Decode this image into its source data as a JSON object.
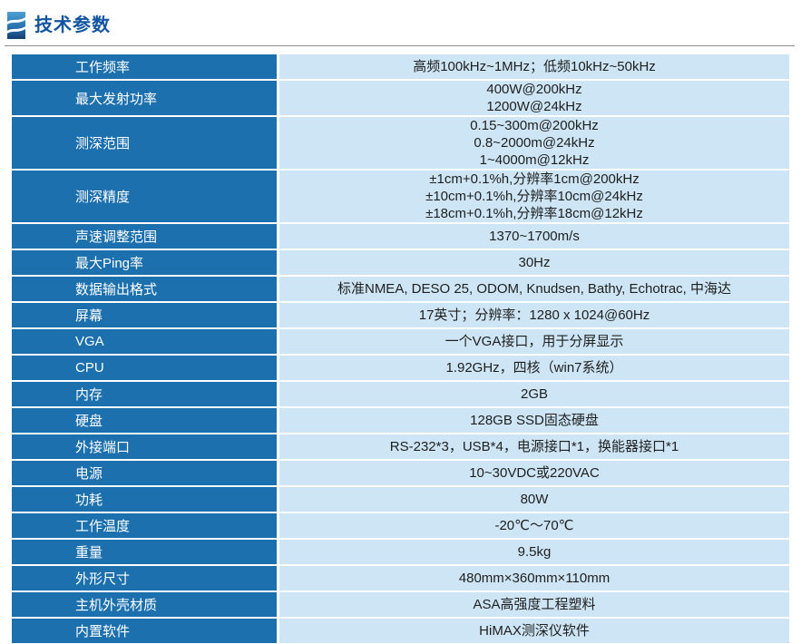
{
  "header": {
    "title": "技术参数",
    "icon": "waves-icon"
  },
  "colors": {
    "label_bg": "#1d70ae",
    "value_bg": "#cde5f4",
    "label_text": "#ffffff",
    "value_text": "#1f1f1f",
    "separator": "#ffffff",
    "title": "#1254a0",
    "rule": "#8f8f8f"
  },
  "table": {
    "rows": [
      {
        "label": "工作频率",
        "values": [
          "高频100kHz~1MHz；低频10kHz~50kHz"
        ]
      },
      {
        "label": "最大发射功率",
        "values": [
          "400W@200kHz",
          "1200W@24kHz"
        ]
      },
      {
        "label": "测深范围",
        "values": [
          "0.15~300m@200kHz",
          "0.8~2000m@24kHz",
          "1~4000m@12kHz"
        ]
      },
      {
        "label": "测深精度",
        "values": [
          "±1cm+0.1%h,分辨率1cm@200kHz",
          "±10cm+0.1%h,分辨率10cm@24kHz",
          "±18cm+0.1%h,分辨率18cm@12kHz"
        ]
      },
      {
        "label": "声速调整范围",
        "values": [
          "1370~1700m/s"
        ]
      },
      {
        "label": "最大Ping率",
        "values": [
          "30Hz"
        ]
      },
      {
        "label": "数据输出格式",
        "values": [
          "标准NMEA, DESO 25, ODOM, Knudsen, Bathy, Echotrac, 中海达"
        ]
      },
      {
        "label": "屏幕",
        "values": [
          "17英寸；分辨率：1280 x 1024@60Hz"
        ]
      },
      {
        "label": "VGA",
        "values": [
          "一个VGA接口，用于分屏显示"
        ]
      },
      {
        "label": "CPU",
        "values": [
          "1.92GHz，四核（win7系统）"
        ]
      },
      {
        "label": "内存",
        "values": [
          "2GB"
        ]
      },
      {
        "label": "硬盘",
        "values": [
          "128GB SSD固态硬盘"
        ]
      },
      {
        "label": "外接端口",
        "values": [
          "RS-232*3，USB*4，电源接口*1，换能器接口*1"
        ]
      },
      {
        "label": "电源",
        "values": [
          "10~30VDC或220VAC"
        ]
      },
      {
        "label": "功耗",
        "values": [
          "80W"
        ]
      },
      {
        "label": "工作温度",
        "values": [
          "-20℃～70℃"
        ]
      },
      {
        "label": "重量",
        "values": [
          "9.5kg"
        ]
      },
      {
        "label": "外形尺寸",
        "values": [
          "480mm×360mm×110mm"
        ]
      },
      {
        "label": "主机外壳材质",
        "values": [
          "ASA高强度工程塑料"
        ]
      },
      {
        "label": "内置软件",
        "values": [
          "HiMAX测深仪软件"
        ]
      }
    ]
  }
}
